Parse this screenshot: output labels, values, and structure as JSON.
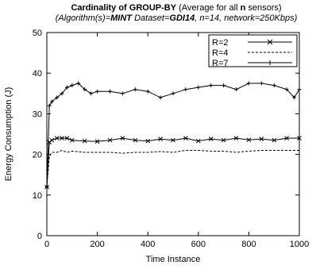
{
  "title": {
    "main_bold": "Cardinality of GROUP-BY",
    "main_rest": " (Average for all ",
    "main_n": "n",
    "main_tail": " sensors)",
    "sub_alg_label": "(Algorithm(s)=",
    "sub_alg_value": "MINT",
    "sub_dataset_label": " Dataset=",
    "sub_dataset_value": "GDI14",
    "sub_tail": ", n=14, network=250Kbps)"
  },
  "chart_data": {
    "type": "line",
    "xlabel": "Time Instance",
    "ylabel": "Energy Consumption (J)",
    "xlim": [
      0,
      1000
    ],
    "ylim": [
      0,
      50
    ],
    "xticks": [
      0,
      200,
      400,
      600,
      800,
      1000
    ],
    "yticks": [
      0,
      10,
      20,
      30,
      40,
      50
    ],
    "grid": false,
    "legend_position": "top-right",
    "series": [
      {
        "name": "R=2",
        "marker": "x",
        "dash": "solid",
        "x": [
          0,
          10,
          20,
          40,
          60,
          80,
          100,
          150,
          200,
          250,
          300,
          350,
          400,
          450,
          500,
          550,
          600,
          650,
          700,
          750,
          800,
          850,
          900,
          950,
          1000
        ],
        "y": [
          12,
          23,
          23.5,
          24,
          24,
          24,
          23.5,
          23.3,
          23.2,
          23.5,
          24,
          23.5,
          23.3,
          23.8,
          23.5,
          24,
          23.3,
          23.8,
          23.5,
          24,
          23.6,
          23.8,
          23.5,
          24,
          24
        ]
      },
      {
        "name": "R=4",
        "marker": "none",
        "dash": "dashed",
        "x": [
          0,
          10,
          20,
          40,
          60,
          80,
          100,
          150,
          200,
          250,
          300,
          350,
          400,
          450,
          500,
          550,
          600,
          650,
          700,
          750,
          800,
          850,
          900,
          950,
          1000
        ],
        "y": [
          12,
          19.5,
          20.5,
          20.5,
          21,
          20.5,
          20.8,
          20.5,
          20.5,
          20.5,
          20.3,
          20.5,
          20.5,
          20.7,
          20.5,
          21,
          21,
          20.8,
          20.8,
          20.5,
          20.8,
          21,
          21,
          21,
          21
        ]
      },
      {
        "name": "R=7",
        "marker": "+",
        "dash": "solid",
        "x": [
          0,
          10,
          20,
          40,
          60,
          80,
          100,
          125,
          150,
          175,
          200,
          250,
          300,
          350,
          400,
          450,
          500,
          550,
          600,
          650,
          700,
          750,
          800,
          850,
          900,
          950,
          980,
          1000
        ],
        "y": [
          12,
          32,
          33,
          34,
          35,
          36.5,
          37,
          37.5,
          36,
          35,
          35.5,
          35.5,
          35,
          36,
          35.5,
          34,
          35,
          36,
          36.5,
          37,
          37,
          36,
          37.5,
          37.5,
          37,
          36,
          34,
          36
        ]
      }
    ]
  }
}
